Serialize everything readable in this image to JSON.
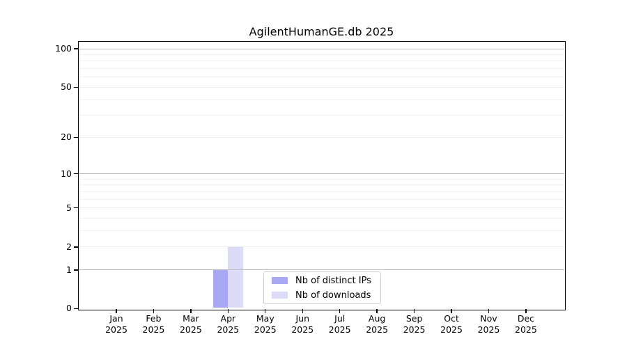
{
  "chart_data": {
    "type": "bar",
    "title": "AgilentHumanGE.db 2025",
    "x": {
      "categories": [
        "Jan",
        "Feb",
        "Mar",
        "Apr",
        "May",
        "Jun",
        "Jul",
        "Aug",
        "Sep",
        "Oct",
        "Nov",
        "Dec"
      ],
      "year_label": "2025"
    },
    "y_axis": {
      "scale": "log10(value+1)",
      "tick_labels": [
        0,
        1,
        2,
        5,
        10,
        20,
        50,
        100
      ],
      "minor_gridlines": [
        3,
        4,
        6,
        7,
        8,
        9,
        30,
        40,
        60,
        70,
        80,
        90
      ],
      "mid_gridlines": [
        2,
        5,
        20,
        50
      ],
      "decade_gridlines": [
        1,
        10,
        100
      ],
      "ylim": [
        0,
        113
      ]
    },
    "series": [
      {
        "name": "Nb of distinct IPs",
        "color": "#a7a7f2",
        "values": [
          0,
          0,
          0,
          1,
          0,
          0,
          0,
          0,
          0,
          0,
          0,
          0
        ]
      },
      {
        "name": "Nb of downloads",
        "color": "#dcdcf8",
        "values": [
          0,
          0,
          0,
          2,
          0,
          0,
          0,
          0,
          0,
          0,
          0,
          0
        ]
      }
    ],
    "legend": {
      "position": "bottom-center"
    },
    "grid": "horizontal-only"
  }
}
